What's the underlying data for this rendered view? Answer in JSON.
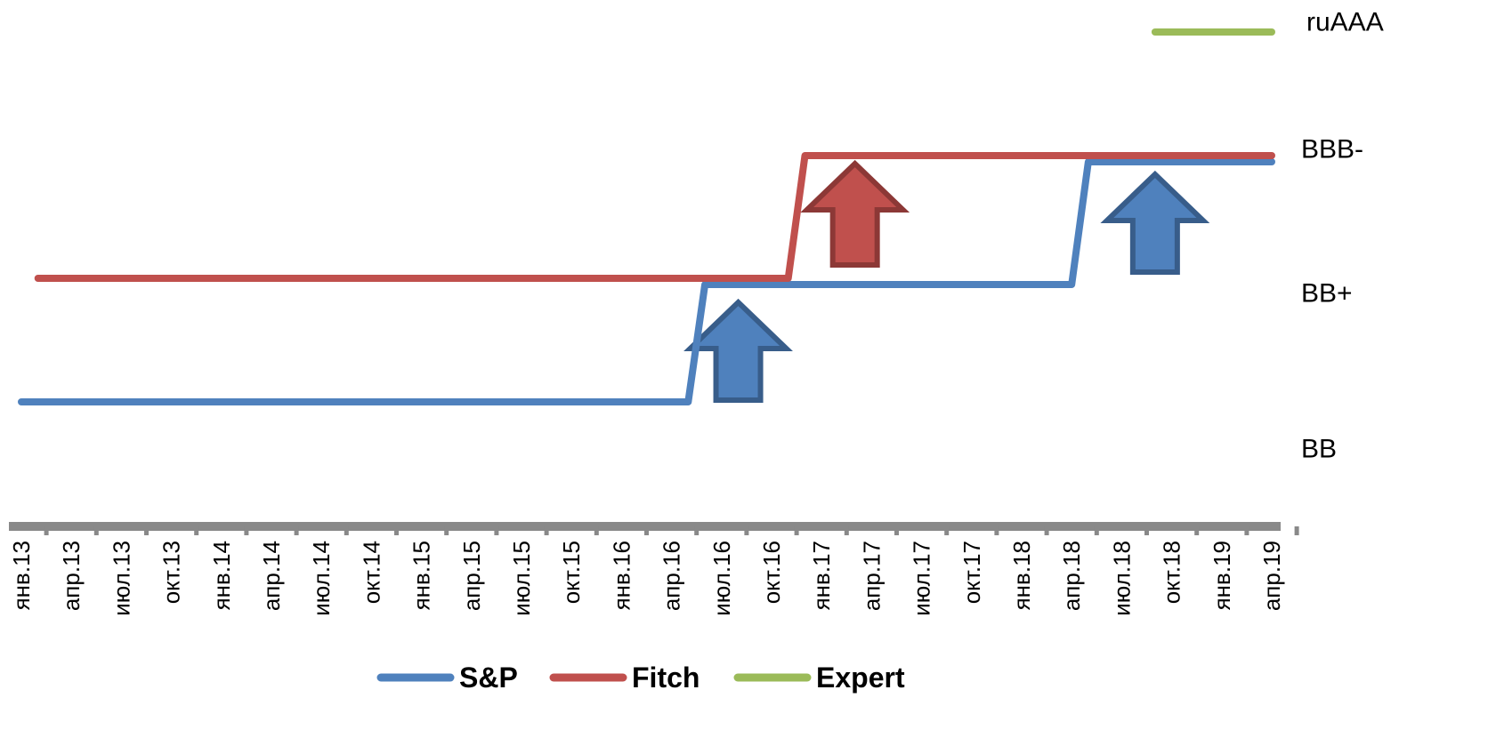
{
  "chart_data": {
    "type": "line",
    "title": "",
    "xlabel": "",
    "ylabel": "",
    "categories": [
      "янв.13",
      "апр.13",
      "июл.13",
      "окт.13",
      "янв.14",
      "апр.14",
      "июл.14",
      "окт.14",
      "янв.15",
      "апр.15",
      "июл.15",
      "окт.15",
      "янв.16",
      "апр.16",
      "июл.16",
      "окт.16",
      "янв.17",
      "апр.17",
      "июл.17",
      "окт.17",
      "янв.18",
      "апр.18",
      "июл.18",
      "окт.18",
      "янв.19",
      "апр.19"
    ],
    "y_levels": [
      "BB",
      "BB+",
      "BBB-",
      "ruAAA"
    ],
    "series": [
      {
        "name": "S&P",
        "color": "#4F81BD",
        "points": [
          {
            "x": "янв.13",
            "y": "BB"
          },
          {
            "x": "май.16",
            "y": "BB"
          },
          {
            "x": "июн.16",
            "y": "BB+"
          },
          {
            "x": "апр.18",
            "y": "BB+"
          },
          {
            "x": "май.18",
            "y": "BBB-"
          },
          {
            "x": "апр.19",
            "y": "BBB-"
          }
        ]
      },
      {
        "name": "Fitch",
        "color": "#C0504D",
        "points": [
          {
            "x": "фев.13",
            "y": "BB+"
          },
          {
            "x": "ноя.16",
            "y": "BB+"
          },
          {
            "x": "дек.16",
            "y": "BBB-"
          },
          {
            "x": "апр.19",
            "y": "BBB-"
          }
        ]
      },
      {
        "name": "Expert",
        "color": "#9BBB59",
        "points": [
          {
            "x": "сен.18",
            "y": "ruAAA"
          },
          {
            "x": "апр.19",
            "y": "ruAAA"
          }
        ]
      }
    ],
    "annotations": [
      {
        "type": "up-arrow",
        "at": "авг.16",
        "color": "#4F81BD"
      },
      {
        "type": "up-arrow",
        "at": "мар.17",
        "color": "#C0504D"
      },
      {
        "type": "up-arrow",
        "at": "сен.18",
        "color": "#4F81BD"
      }
    ],
    "legend_position": "bottom",
    "grid": false
  },
  "legend": [
    {
      "label": "S&P",
      "color": "#4F81BD"
    },
    {
      "label": "Fitch",
      "color": "#C0504D"
    },
    {
      "label": "Expert",
      "color": "#9BBB59"
    }
  ],
  "colors": {
    "axis": "#898989",
    "sp": "#4F81BD",
    "sp_dark": "#385D8A",
    "fitch": "#C0504D",
    "fitch_dark": "#8C3836",
    "expert": "#9BBB59"
  }
}
